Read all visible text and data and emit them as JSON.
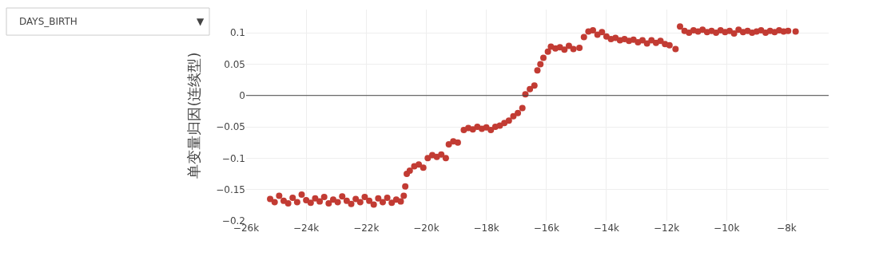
{
  "chart_data": {
    "type": "scatter",
    "ylabel": "单变量归因(连续型)",
    "annotations": [
      "DAYS_BIRTH",
      "▼"
    ],
    "x": [
      -25200,
      -25050,
      -24900,
      -24750,
      -24600,
      -24450,
      -24300,
      -24150,
      -24000,
      -23850,
      -23700,
      -23550,
      -23400,
      -23250,
      -23100,
      -22950,
      -22800,
      -22650,
      -22500,
      -22350,
      -22200,
      -22050,
      -21900,
      -21750,
      -21600,
      -21450,
      -21300,
      -21150,
      -21000,
      -20850,
      -20750,
      -20700,
      -20650,
      -20550,
      -20400,
      -20250,
      -20100,
      -19950,
      -19800,
      -19650,
      -19500,
      -19350,
      -19250,
      -19100,
      -18950,
      -18750,
      -18600,
      -18450,
      -18300,
      -18150,
      -18000,
      -17850,
      -17700,
      -17550,
      -17400,
      -17250,
      -17100,
      -16950,
      -16800,
      -16700,
      -16550,
      -16400,
      -16300,
      -16200,
      -16100,
      -15950,
      -15850,
      -15700,
      -15550,
      -15400,
      -15250,
      -15100,
      -14900,
      -14750,
      -14600,
      -14450,
      -14300,
      -14150,
      -14000,
      -13850,
      -13700,
      -13550,
      -13400,
      -13250,
      -13100,
      -12950,
      -12800,
      -12650,
      -12500,
      -12350,
      -12200,
      -12050,
      -11900,
      -11700,
      -11550,
      -11400,
      -11250,
      -11100,
      -10950,
      -10800,
      -10650,
      -10500,
      -10350,
      -10200,
      -10050,
      -9900,
      -9750,
      -9600,
      -9450,
      -9300,
      -9150,
      -9000,
      -8850,
      -8700,
      -8550,
      -8400,
      -8250,
      -8100,
      -7950,
      -7700
    ],
    "series": [
      {
        "color": "#c23b33",
        "values": [
          -0.165,
          -0.17,
          -0.16,
          -0.168,
          -0.172,
          -0.163,
          -0.17,
          -0.158,
          -0.167,
          -0.171,
          -0.164,
          -0.169,
          -0.162,
          -0.172,
          -0.166,
          -0.17,
          -0.161,
          -0.168,
          -0.173,
          -0.165,
          -0.17,
          -0.162,
          -0.168,
          -0.174,
          -0.164,
          -0.17,
          -0.163,
          -0.171,
          -0.166,
          -0.169,
          -0.16,
          -0.145,
          -0.125,
          -0.12,
          -0.113,
          -0.11,
          -0.115,
          -0.1,
          -0.095,
          -0.098,
          -0.094,
          -0.1,
          -0.078,
          -0.073,
          -0.075,
          -0.055,
          -0.052,
          -0.054,
          -0.05,
          -0.053,
          -0.051,
          -0.055,
          -0.05,
          -0.048,
          -0.044,
          -0.04,
          -0.033,
          -0.028,
          -0.02,
          0.002,
          0.01,
          0.016,
          0.04,
          0.05,
          0.06,
          0.07,
          0.078,
          0.075,
          0.077,
          0.073,
          0.079,
          0.074,
          0.076,
          0.093,
          0.102,
          0.104,
          0.097,
          0.101,
          0.094,
          0.09,
          0.092,
          0.088,
          0.09,
          0.087,
          0.089,
          0.085,
          0.088,
          0.083,
          0.088,
          0.084,
          0.087,
          0.082,
          0.08,
          0.074,
          0.11,
          0.103,
          0.1,
          0.104,
          0.102,
          0.105,
          0.101,
          0.103,
          0.1,
          0.104,
          0.101,
          0.103,
          0.099,
          0.105,
          0.101,
          0.103,
          0.1,
          0.102,
          0.104,
          0.1,
          0.103,
          0.101,
          0.104,
          0.102,
          0.103,
          0.102
        ]
      }
    ],
    "xlim": [
      -26000,
      -6600
    ],
    "xticks": [
      {
        "value": -26000,
        "label": "−26k"
      },
      {
        "value": -24000,
        "label": "−24k"
      },
      {
        "value": -22000,
        "label": "−22k"
      },
      {
        "value": -20000,
        "label": "−20k"
      },
      {
        "value": -18000,
        "label": "−18k"
      },
      {
        "value": -16000,
        "label": "−16k"
      },
      {
        "value": -14000,
        "label": "−14k"
      },
      {
        "value": -12000,
        "label": "−12k"
      },
      {
        "value": -10000,
        "label": "−10k"
      },
      {
        "value": -8000,
        "label": "−8k"
      }
    ],
    "ylim": [
      -0.2,
      0.137
    ],
    "yticks": [
      {
        "value": -0.2,
        "label": "−0.2"
      },
      {
        "value": -0.15,
        "label": "−0.15"
      },
      {
        "value": -0.1,
        "label": "−0.1"
      },
      {
        "value": -0.05,
        "label": "−0.05"
      },
      0,
      0.05,
      0.1
    ],
    "ref_lines": [
      {
        "axis": "y",
        "value": 0,
        "color": "#444444"
      }
    ],
    "grid": true,
    "marker": "circle"
  }
}
